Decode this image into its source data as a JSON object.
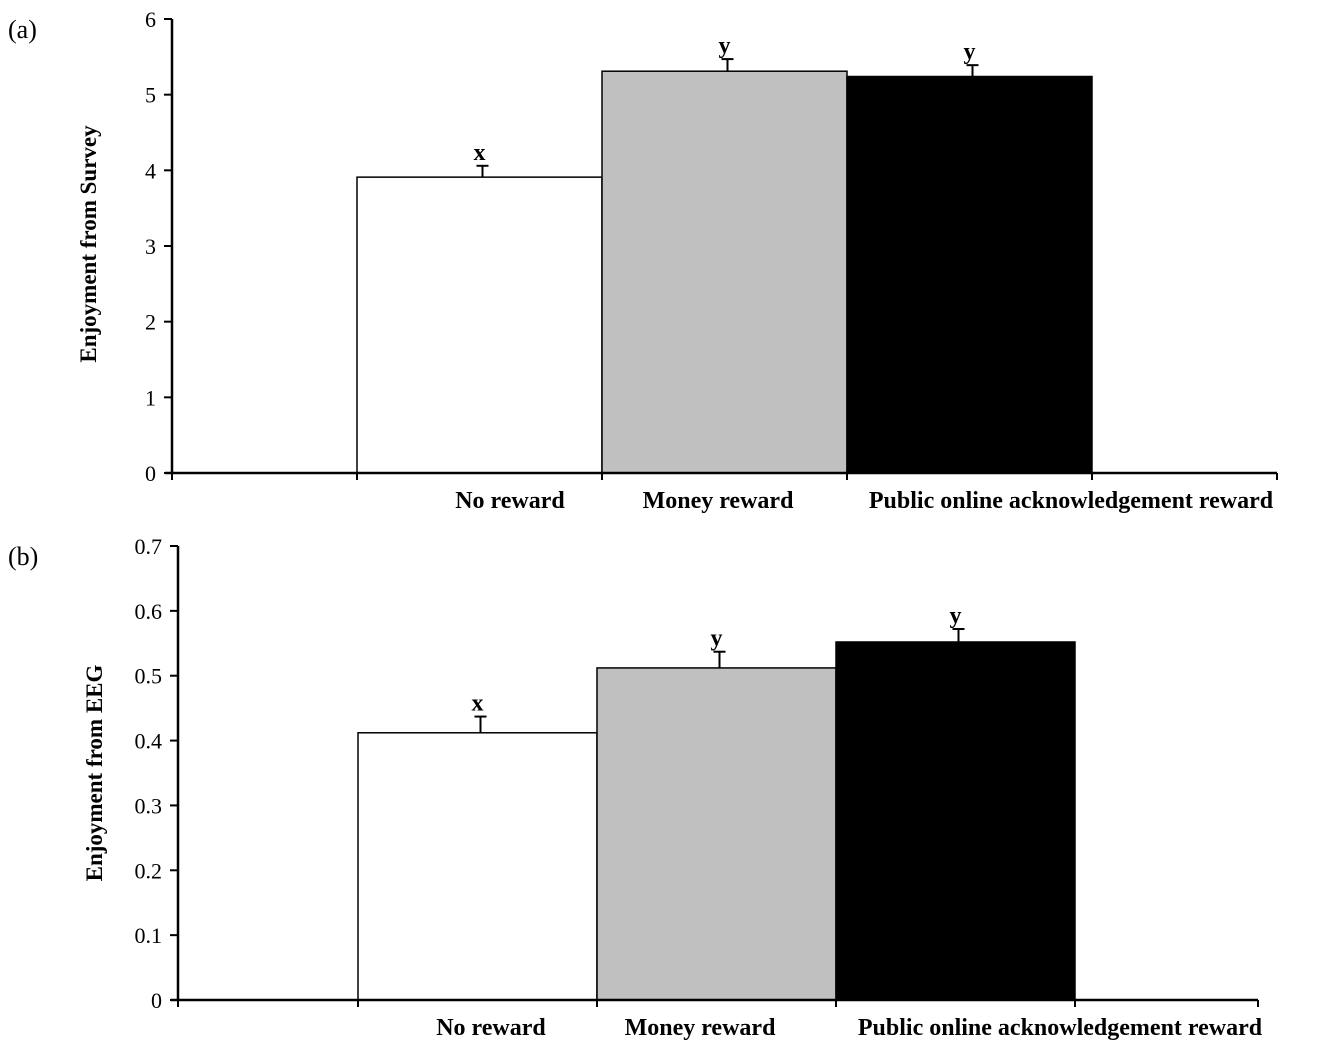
{
  "chart_data": [
    {
      "type": "bar",
      "panel_label": "(a)",
      "title": "",
      "xlabel": "",
      "ylabel": "Enjoyment from Survey",
      "ylim": [
        0,
        6
      ],
      "yticks": [
        "0",
        "1",
        "2",
        "3",
        "4",
        "5",
        "6"
      ],
      "categories": [
        "No reward",
        "Money reward",
        "Public online acknowledgement  reward"
      ],
      "values": [
        3.91,
        5.31,
        5.24
      ],
      "errors": [
        0.15,
        0.16,
        0.15
      ],
      "significance": [
        "x",
        "y",
        "y"
      ],
      "bar_colors": [
        "#ffffff",
        "#c0c0c0",
        "#000000"
      ],
      "grid": false,
      "legend": "none"
    },
    {
      "type": "bar",
      "panel_label": "(b)",
      "title": "",
      "xlabel": "",
      "ylabel": "Enjoyment from EEG",
      "ylim": [
        0,
        0.7
      ],
      "yticks": [
        "0",
        "0.1",
        "0.2",
        "0.3",
        "0.4",
        "0.5",
        "0.6",
        "0.7"
      ],
      "categories": [
        "No reward",
        "Money reward",
        "Public online acknowledgement  reward"
      ],
      "values": [
        0.412,
        0.512,
        0.552
      ],
      "errors": [
        0.025,
        0.025,
        0.02
      ],
      "significance": [
        "x",
        "y",
        "y"
      ],
      "bar_colors": [
        "#ffffff",
        "#c0c0c0",
        "#000000"
      ],
      "grid": false,
      "legend": "none"
    }
  ]
}
